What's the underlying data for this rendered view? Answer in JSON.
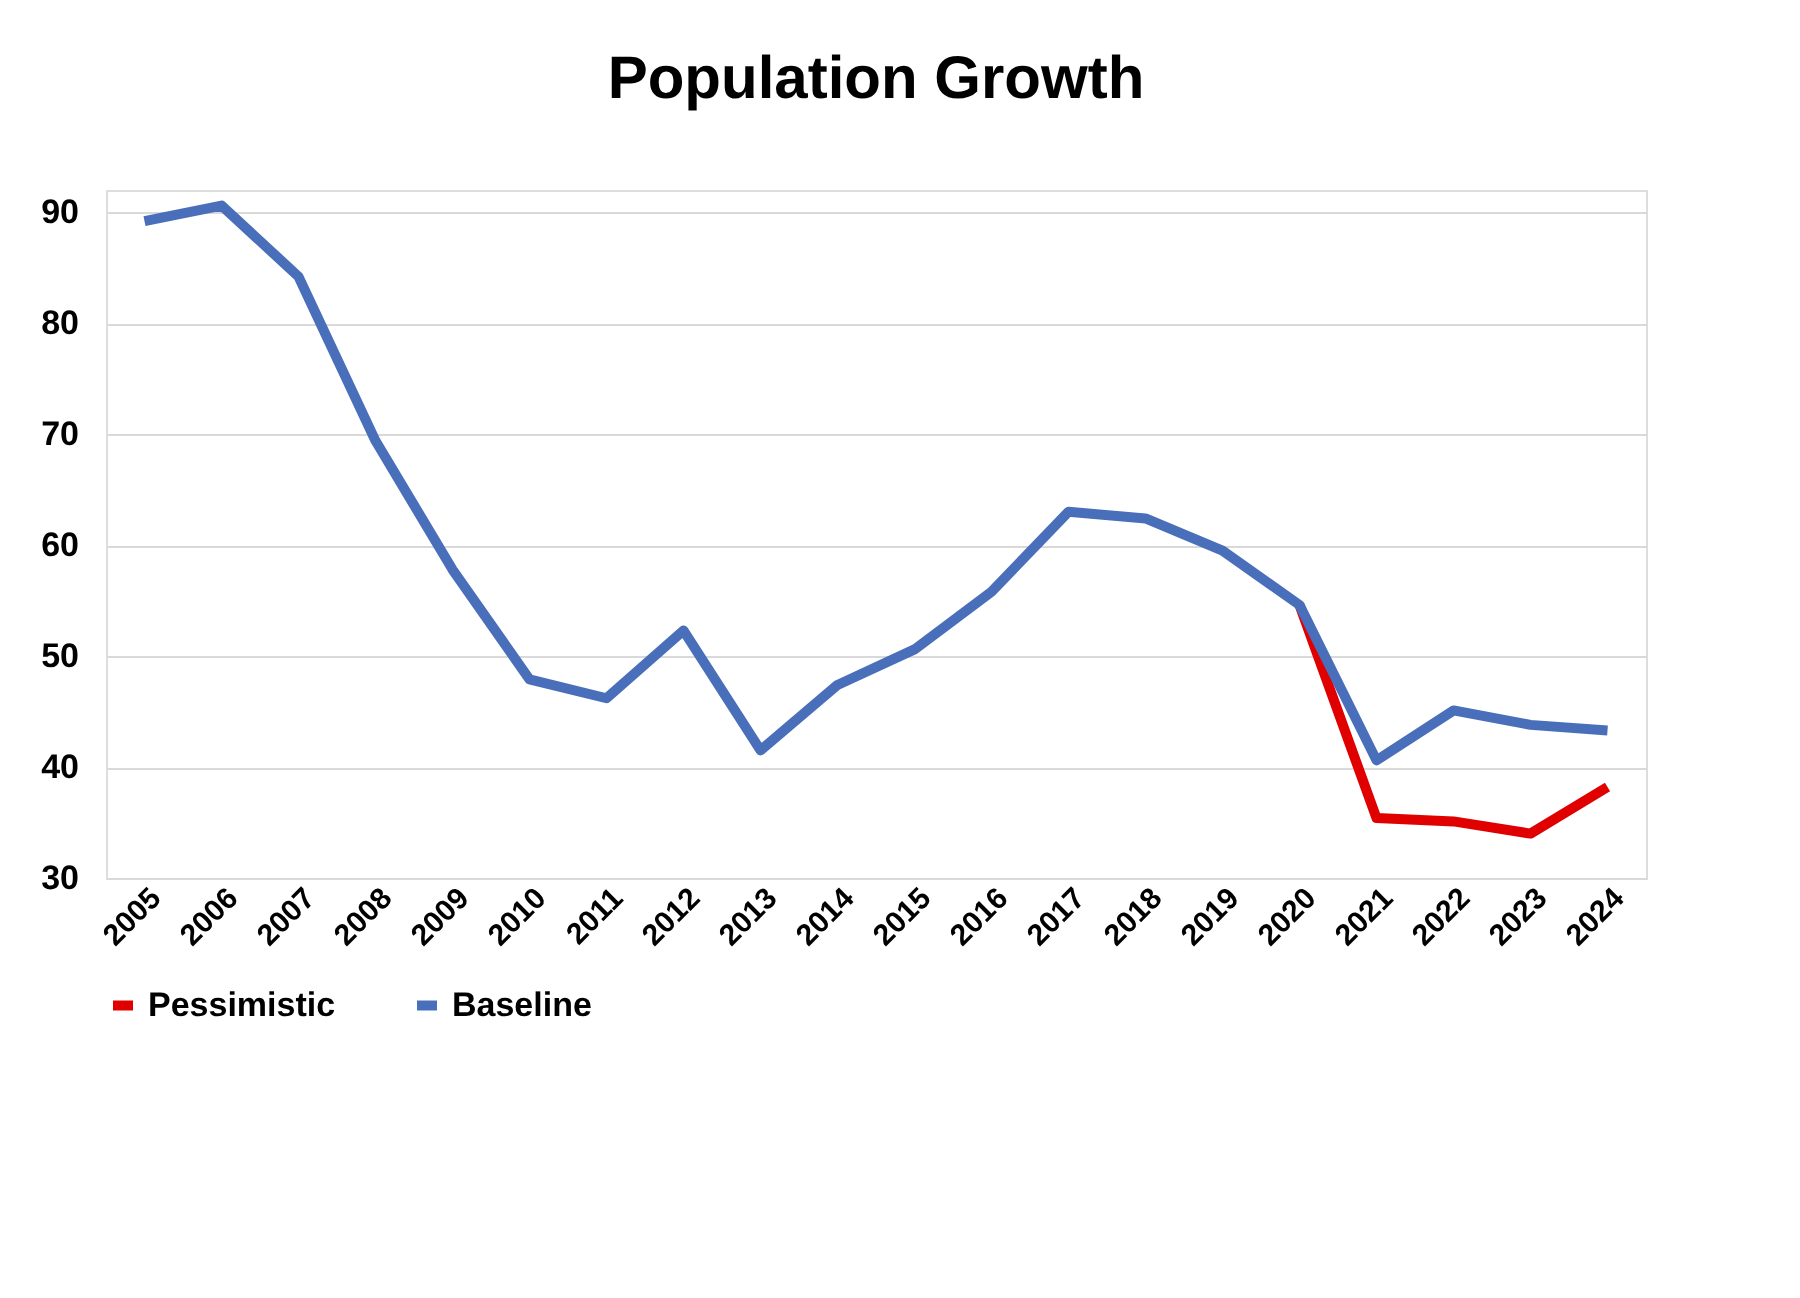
{
  "chart_data": {
    "type": "line",
    "title": "Population Growth",
    "categories": [
      "2005",
      "2006",
      "2007",
      "2008",
      "2009",
      "2010",
      "2011",
      "2012",
      "2013",
      "2014",
      "2015",
      "2016",
      "2017",
      "2018",
      "2019",
      "2020",
      "2021",
      "2022",
      "2023",
      "2024"
    ],
    "series": [
      {
        "name": "Pessimistic",
        "color": "#e00000",
        "values": [
          null,
          null,
          null,
          null,
          null,
          null,
          null,
          null,
          null,
          null,
          null,
          null,
          null,
          null,
          null,
          54.6,
          35.4,
          35.1,
          34.0,
          38.2
        ]
      },
      {
        "name": "Baseline",
        "color": "#4a6fba",
        "values": [
          89.2,
          90.6,
          84.2,
          69.4,
          57.8,
          47.9,
          46.2,
          52.3,
          41.5,
          47.4,
          50.6,
          55.8,
          63.0,
          62.4,
          59.5,
          54.6,
          40.6,
          45.1,
          43.8,
          43.3
        ]
      }
    ],
    "ylim": [
      30,
      92
    ],
    "yticks": [
      30,
      40,
      50,
      60,
      70,
      80,
      90
    ],
    "grid": "y",
    "legend": "bottom",
    "marker": "none",
    "line_style": "solid"
  }
}
